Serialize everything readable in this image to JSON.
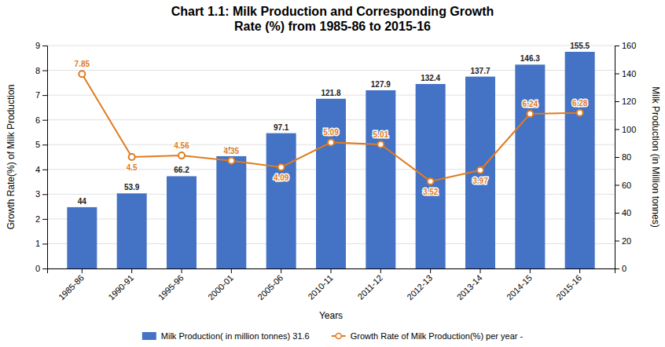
{
  "chart_data": {
    "type": "bar",
    "title": "Chart 1.1: Milk Production and Corresponding Growth\nRate (%) from 1985-86 to 2015-16",
    "xlabel": "Years",
    "ylabel": "Growth Rate(%) of Milk Production",
    "y2label": "Milk Production (in Million tonnes)",
    "categories": [
      "1985-86",
      "1990-91",
      "1995-96",
      "2000-01",
      "2005-06",
      "2010-11",
      "2011-12",
      "2012-13",
      "2013-14",
      "2014-15",
      "2015-16"
    ],
    "ylim": [
      0,
      9
    ],
    "yticks": [
      0,
      1,
      2,
      3,
      4,
      5,
      6,
      7,
      8,
      9
    ],
    "y2lim": [
      0,
      160
    ],
    "y2ticks": [
      0,
      20,
      40,
      60,
      80,
      100,
      120,
      140,
      160
    ],
    "grid": true,
    "legend": "bottom",
    "data_labels": true,
    "series": [
      {
        "name": "Milk Production( in million tonnes) 31.6",
        "type": "bar",
        "axis": "y2",
        "color": "#4472C4",
        "values": [
          44,
          53.9,
          66.2,
          80.6,
          97.1,
          121.8,
          127.9,
          132.4,
          137.7,
          146.3,
          155.5
        ]
      },
      {
        "name": "Growth Rate of Milk Production(%) per year -",
        "type": "line",
        "color": "#E07B20",
        "marker": "circle",
        "values": [
          7.85,
          4.5,
          4.56,
          4.35,
          4.09,
          5.09,
          5.01,
          3.52,
          3.97,
          6.24,
          6.28
        ]
      }
    ]
  }
}
